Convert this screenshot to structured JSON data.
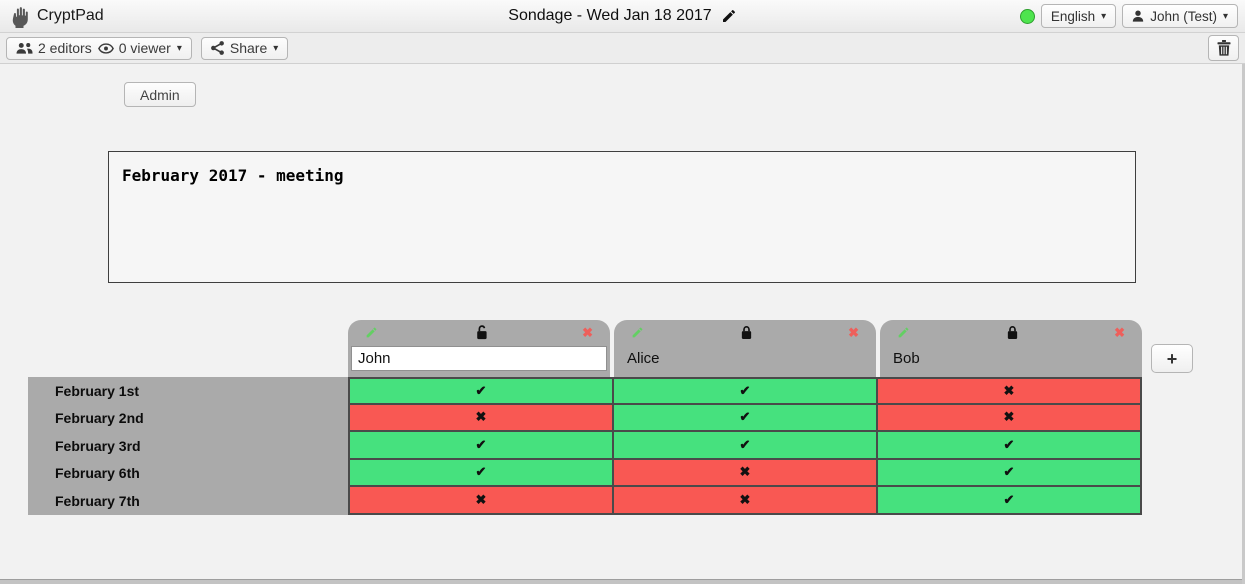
{
  "navbar": {
    "brand": "CryptPad",
    "title": "Sondage - Wed Jan 18 2017",
    "language_button": "English",
    "user_button": "John (Test)",
    "caret_glyph": "▾",
    "status_lamp_color": "#4ee44e"
  },
  "toolbar": {
    "editors_label": "2 editors",
    "viewers_label": "0 viewer",
    "share_label": "Share"
  },
  "admin_button_label": "Admin",
  "description_text": "February 2017 - meeting",
  "poll": {
    "add_column_glyph": "+",
    "columns": [
      {
        "name": "John",
        "editable": true,
        "locked": false
      },
      {
        "name": "Alice",
        "editable": false,
        "locked": true
      },
      {
        "name": "Bob",
        "editable": false,
        "locked": true
      }
    ],
    "rows": [
      {
        "label": "February 1st",
        "votes": [
          "yes",
          "yes",
          "no"
        ]
      },
      {
        "label": "February 2nd",
        "votes": [
          "no",
          "yes",
          "no"
        ]
      },
      {
        "label": "February 3rd",
        "votes": [
          "yes",
          "yes",
          "yes"
        ]
      },
      {
        "label": "February 6th",
        "votes": [
          "yes",
          "no",
          "yes"
        ]
      },
      {
        "label": "February 7th",
        "votes": [
          "no",
          "no",
          "yes"
        ]
      }
    ],
    "glyphs": {
      "yes": "✔",
      "no": "✖",
      "remove_column": "✖"
    },
    "colors": {
      "yes": "#46e17e",
      "no": "#f95853",
      "header_gray": "#aaaaaa",
      "grid_border": "#4a4a4a",
      "remove_red": "#ee5f5b",
      "edit_pencil_green": "#63cf63"
    }
  }
}
